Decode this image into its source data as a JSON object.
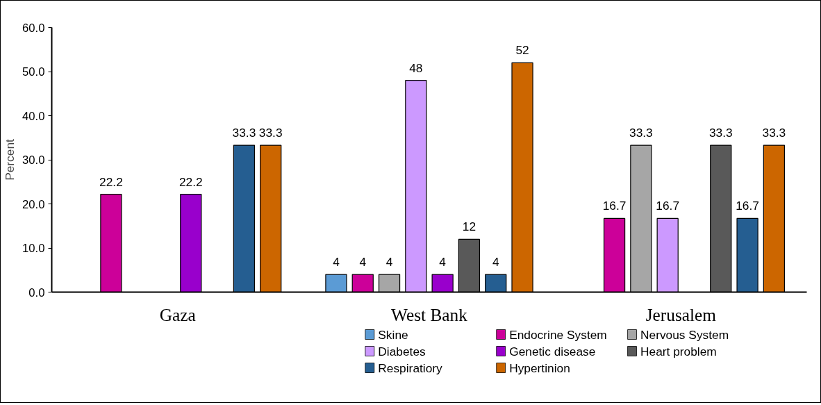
{
  "chart_data": {
    "type": "bar",
    "ylabel": "Percent",
    "categories": [
      "Gaza",
      "West Bank",
      "Jerusalem"
    ],
    "series": [
      {
        "name": "Skine",
        "color": "#5b9bd5",
        "values": [
          null,
          4,
          null
        ]
      },
      {
        "name": "Endocrine System",
        "color": "#cc0099",
        "values": [
          22.2,
          4,
          16.7
        ]
      },
      {
        "name": "Nervous System",
        "color": "#a6a6a6",
        "values": [
          null,
          4,
          33.3
        ]
      },
      {
        "name": "Diabetes",
        "color": "#cc99ff",
        "values": [
          null,
          48,
          16.7
        ]
      },
      {
        "name": "Genetic disease",
        "color": "#9900cc",
        "values": [
          22.2,
          4,
          null
        ]
      },
      {
        "name": "Heart problem",
        "color": "#595959",
        "values": [
          null,
          12,
          33.3
        ]
      },
      {
        "name": "Respiratiory",
        "color": "#255e91",
        "values": [
          33.3,
          4,
          16.7
        ]
      },
      {
        "name": "Hypertinion",
        "color": "#cc6600",
        "values": [
          33.3,
          52,
          33.3
        ]
      }
    ],
    "ylim": [
      0,
      60
    ],
    "yticks": [
      {
        "value": 0,
        "label": "0.0"
      },
      {
        "value": 10,
        "label": "10.0"
      },
      {
        "value": 20,
        "label": "20.0"
      },
      {
        "value": 30,
        "label": "30.0"
      },
      {
        "value": 40,
        "label": "40.0"
      },
      {
        "value": 50,
        "label": "50.0"
      },
      {
        "value": 60,
        "label": "60.0"
      }
    ],
    "data_labels": true,
    "grid": false,
    "legend": "bottom"
  }
}
